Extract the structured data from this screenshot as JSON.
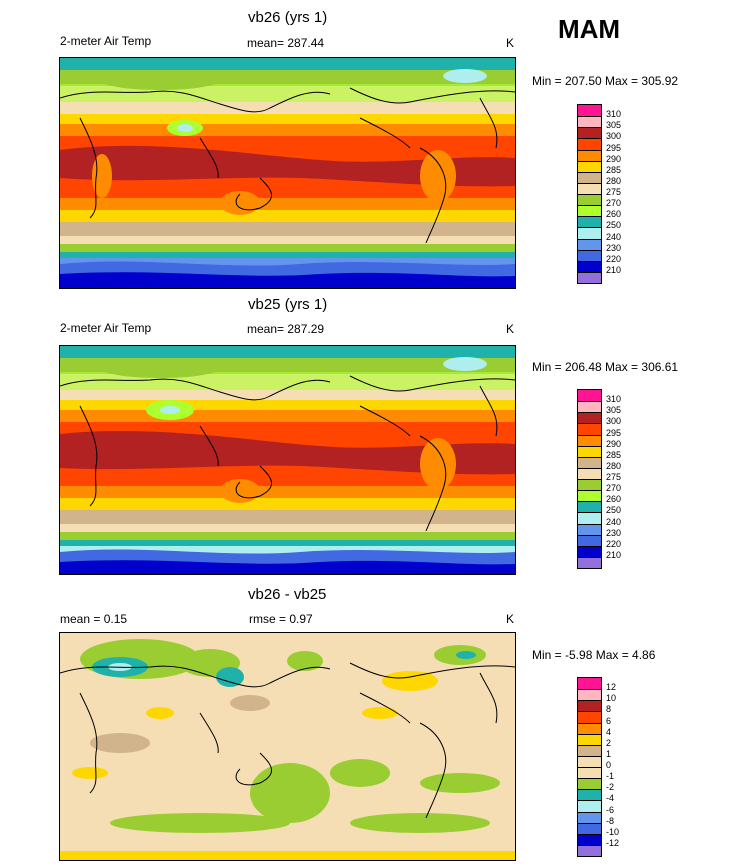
{
  "season": "MAM",
  "panels": [
    {
      "title": "vb26 (yrs 1)",
      "left_label": "2-meter Air Temp",
      "center_label": "mean= 287.44",
      "units": "K",
      "minmax": "Min = 207.50 Max = 305.92",
      "levels": [
        "310",
        "305",
        "300",
        "295",
        "290",
        "285",
        "280",
        "275",
        "270",
        "260",
        "250",
        "240",
        "230",
        "220",
        "210"
      ]
    },
    {
      "title": "vb25 (yrs 1)",
      "left_label": "2-meter Air Temp",
      "center_label": "mean= 287.29",
      "units": "K",
      "minmax": "Min = 206.48 Max = 306.61",
      "levels": [
        "310",
        "305",
        "300",
        "295",
        "290",
        "285",
        "280",
        "275",
        "270",
        "260",
        "250",
        "240",
        "230",
        "220",
        "210"
      ]
    },
    {
      "title": "vb26 - vb25",
      "left_label": "mean =   0.15",
      "center_label": "rmse =   0.97",
      "units": "K",
      "minmax": "Min =  -5.98 Max =   4.86",
      "levels": [
        "12",
        "10",
        "8",
        "6",
        "4",
        "2",
        "1",
        "0",
        "-1",
        "-2",
        "-4",
        "-6",
        "-8",
        "-10",
        "-12"
      ]
    }
  ],
  "colors": {
    "abs_scale": [
      "#ff1493",
      "#ffb6c1",
      "#b22222",
      "#ff4500",
      "#ff8c00",
      "#ffd700",
      "#d2b48c",
      "#f5deb3",
      "#9acd32",
      "#adff2f",
      "#20b2aa",
      "#afeeee",
      "#6495ed",
      "#4169e1",
      "#0000cd",
      "#9370db"
    ],
    "diff_scale": [
      "#ff1493",
      "#ffb6c1",
      "#b22222",
      "#ff4500",
      "#ff8c00",
      "#ffd700",
      "#d2b48c",
      "#f5deb3",
      "#f5deb3",
      "#9acd32",
      "#20b2aa",
      "#afeeee",
      "#6495ed",
      "#4169e1",
      "#0000cd",
      "#9370db"
    ]
  }
}
